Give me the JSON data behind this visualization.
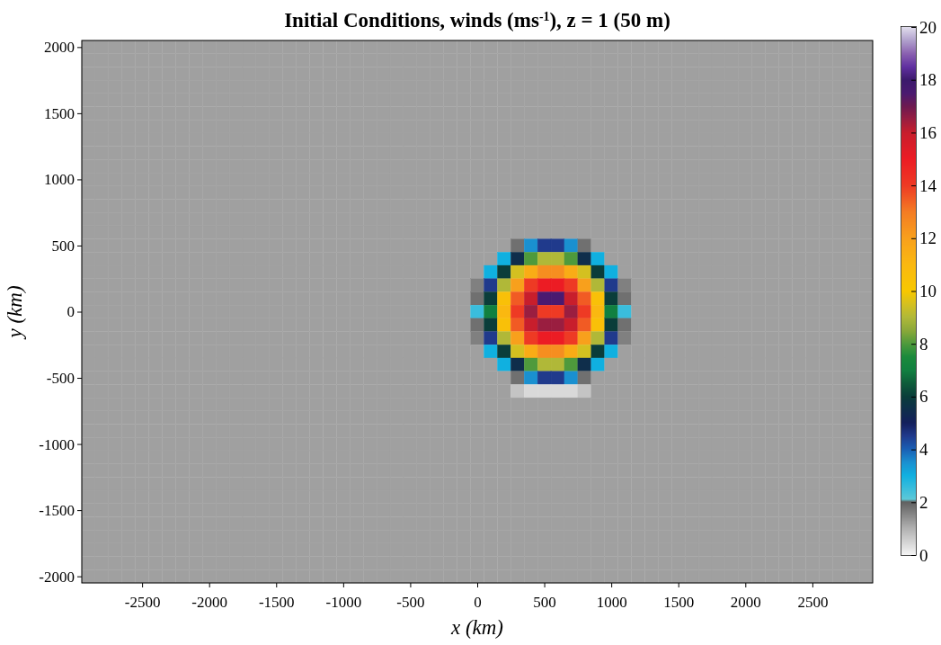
{
  "chart_data": {
    "type": "heatmap",
    "title": "Initial Conditions, winds (ms$^{-1}$), z = 1 (50 m)",
    "xlabel": "x (km)",
    "ylabel": "y (km)",
    "xlim": [
      -2950,
      2950
    ],
    "ylim": [
      -2050,
      2050
    ],
    "xticks": [
      -2500,
      -2000,
      -1500,
      -1000,
      -500,
      0,
      500,
      1000,
      1500,
      2000,
      2500
    ],
    "yticks": [
      -2000,
      -1500,
      -1000,
      -500,
      0,
      500,
      1000,
      1500,
      2000
    ],
    "clim": [
      0,
      20
    ],
    "cticks": [
      0,
      2,
      4,
      6,
      8,
      10,
      12,
      14,
      16,
      18,
      20
    ],
    "x": [
      -2900,
      -2800,
      -2700,
      -2600,
      -2500,
      -2400,
      -2300,
      -2200,
      -2100,
      -2000,
      -1900,
      -1800,
      -1700,
      -1600,
      -1500,
      -1400,
      -1300,
      -1200,
      -1100,
      -1000,
      -900,
      -800,
      -700,
      -600,
      -500,
      -400,
      -300,
      -200,
      -100,
      0,
      100,
      200,
      300,
      400,
      500,
      600,
      700,
      800,
      900,
      1000,
      1100,
      1200,
      1300,
      1400,
      1500,
      1600,
      1700,
      1800,
      1900,
      2000,
      2100,
      2200,
      2300,
      2400,
      2500,
      2600,
      2700,
      2800,
      2900
    ],
    "y": [
      2000,
      1900,
      1800,
      1700,
      1600,
      1500,
      1400,
      1300,
      1200,
      1100,
      1000,
      900,
      800,
      700,
      600,
      500,
      400,
      300,
      200,
      100,
      0,
      -100,
      -200,
      -300,
      -400,
      -500,
      -600,
      -700,
      -800,
      -900,
      -1000,
      -1100,
      -1200,
      -1300,
      -1400,
      -1500,
      -1600,
      -1700,
      -1800,
      -1900,
      -2000
    ],
    "cells": [
      [
        1.2,
        1.2,
        1.2,
        1.2,
        1.2,
        1.2,
        1.2,
        1.2,
        1.2,
        1.2,
        1.2,
        1.2,
        1.2,
        1.2,
        1.2,
        1.2,
        1.2,
        1.2,
        1.2,
        1.2,
        1.2,
        1.2,
        1.2,
        1.2,
        1.2,
        1.2,
        1.2,
        1.2,
        1.2,
        1.2,
        1.2,
        1.2,
        1.2,
        1.2,
        1.2,
        1.2,
        1.2,
        1.2,
        1.2,
        1.2,
        1.2,
        1.2,
        1.2,
        1.2,
        1.2,
        1.2,
        1.2,
        1.2,
        1.2,
        1.2,
        1.2,
        1.2,
        1.2,
        1.2,
        1.2,
        1.2,
        1.2,
        1.2,
        1.2
      ],
      [
        1.2,
        1.2,
        1.2,
        1.2,
        1.2,
        1.2,
        1.2,
        1.2,
        1.2,
        1.2,
        1.2,
        1.2,
        1.2,
        1.2,
        1.2,
        1.2,
        1.2,
        1.2,
        1.2,
        1.2,
        1.2,
        1.2,
        1.2,
        1.2,
        1.2,
        1.2,
        1.2,
        1.2,
        1.2,
        1.2,
        1.2,
        1.2,
        1.2,
        1.2,
        1.2,
        1.2,
        1.2,
        1.2,
        1.2,
        1.2,
        1.2,
        1.2,
        1.2,
        1.2,
        1.2,
        1.2,
        1.2,
        1.2,
        1.2,
        1.2,
        1.2,
        1.2,
        1.2,
        1.2,
        1.2,
        1.2,
        1.2,
        1.2,
        1.2
      ],
      [
        1.2,
        1.2,
        1.2,
        1.2,
        1.2,
        1.2,
        1.2,
        1.2,
        1.2,
        1.2,
        1.2,
        1.2,
        1.2,
        1.2,
        1.2,
        1.2,
        1.2,
        1.2,
        1.2,
        1.2,
        1.2,
        1.2,
        1.2,
        1.2,
        1.2,
        1.2,
        1.2,
        1.2,
        1.2,
        1.2,
        1.2,
        1.2,
        1.2,
        1.2,
        1.2,
        1.2,
        1.2,
        1.2,
        1.2,
        1.2,
        1.2,
        1.2,
        1.2,
        1.2,
        1.2,
        1.2,
        1.2,
        1.2,
        1.2,
        1.2,
        1.2,
        1.2,
        1.2,
        1.2,
        1.2,
        1.2,
        1.2,
        1.2,
        1.2
      ],
      [
        1.2,
        1.2,
        1.2,
        1.2,
        1.2,
        1.2,
        1.2,
        1.2,
        1.2,
        1.2,
        1.2,
        1.2,
        1.2,
        1.2,
        1.2,
        1.2,
        1.2,
        1.2,
        1.2,
        1.2,
        1.2,
        1.2,
        1.2,
        1.2,
        1.2,
        1.2,
        1.2,
        1.2,
        1.2,
        1.2,
        1.2,
        1.2,
        1.2,
        1.2,
        1.2,
        1.2,
        1.2,
        1.2,
        1.2,
        1.2,
        1.2,
        1.2,
        1.2,
        1.2,
        1.2,
        1.2,
        1.2,
        1.2,
        1.2,
        1.2,
        1.2,
        1.2,
        1.2,
        1.2,
        1.2,
        1.2,
        1.2,
        1.2,
        1.2
      ],
      [
        1.2,
        1.2,
        1.2,
        1.2,
        1.2,
        1.2,
        1.2,
        1.2,
        1.2,
        1.2,
        1.2,
        1.2,
        1.2,
        1.2,
        1.2,
        1.2,
        1.2,
        1.2,
        1.2,
        1.2,
        1.2,
        1.2,
        1.2,
        1.2,
        1.2,
        1.2,
        1.2,
        1.2,
        1.2,
        1.2,
        1.2,
        1.2,
        1.2,
        1.2,
        1.2,
        1.2,
        1.2,
        1.2,
        1.2,
        1.2,
        1.2,
        1.2,
        1.2,
        1.2,
        1.2,
        1.2,
        1.2,
        1.2,
        1.2,
        1.2,
        1.2,
        1.2,
        1.2,
        1.2,
        1.2,
        1.2,
        1.2,
        1.2,
        1.2
      ],
      [
        1.2,
        1.2,
        1.2,
        1.2,
        1.2,
        1.2,
        1.2,
        1.2,
        1.2,
        1.2,
        1.2,
        1.2,
        1.2,
        1.2,
        1.2,
        1.2,
        1.2,
        1.2,
        1.2,
        1.2,
        1.2,
        1.2,
        1.2,
        1.2,
        1.2,
        1.2,
        1.2,
        1.2,
        1.2,
        1.2,
        1.2,
        1.2,
        1.2,
        1.2,
        1.2,
        1.2,
        1.2,
        1.2,
        1.2,
        1.2,
        1.2,
        1.2,
        1.2,
        1.2,
        1.2,
        1.2,
        1.2,
        1.2,
        1.2,
        1.2,
        1.2,
        1.2,
        1.2,
        1.2,
        1.2,
        1.2,
        1.2,
        1.2,
        1.2
      ],
      [
        1.2,
        1.2,
        1.2,
        1.2,
        1.2,
        1.2,
        1.2,
        1.2,
        1.2,
        1.2,
        1.2,
        1.2,
        1.2,
        1.2,
        1.2,
        1.2,
        1.2,
        1.2,
        1.2,
        1.2,
        1.2,
        1.2,
        1.2,
        1.2,
        1.2,
        1.2,
        1.2,
        1.2,
        1.2,
        1.2,
        1.2,
        1.2,
        1.2,
        1.2,
        1.2,
        1.2,
        1.2,
        1.2,
        1.2,
        1.2,
        1.2,
        1.2,
        1.2,
        1.2,
        1.2,
        1.2,
        1.2,
        1.2,
        1.2,
        1.2,
        1.2,
        1.2,
        1.2,
        1.2,
        1.2,
        1.2,
        1.2,
        1.2,
        1.2
      ],
      [
        1.2,
        1.2,
        1.2,
        1.2,
        1.2,
        1.2,
        1.2,
        1.2,
        1.2,
        1.2,
        1.2,
        1.2,
        1.2,
        1.2,
        1.2,
        1.2,
        1.2,
        1.2,
        1.2,
        1.2,
        1.2,
        1.2,
        1.2,
        1.2,
        1.2,
        1.2,
        1.2,
        1.2,
        1.2,
        1.2,
        1.2,
        1.2,
        1.2,
        1.2,
        1.2,
        1.2,
        1.2,
        1.2,
        1.2,
        1.2,
        1.2,
        1.2,
        1.2,
        1.2,
        1.2,
        1.2,
        1.2,
        1.2,
        1.2,
        1.2,
        1.2,
        1.2,
        1.2,
        1.2,
        1.2,
        1.2,
        1.2,
        1.2,
        1.2
      ],
      [
        1.2,
        1.2,
        1.2,
        1.2,
        1.2,
        1.2,
        1.2,
        1.2,
        1.2,
        1.2,
        1.2,
        1.2,
        1.2,
        1.2,
        1.2,
        1.2,
        1.2,
        1.2,
        1.2,
        1.2,
        1.2,
        1.2,
        1.2,
        1.2,
        1.2,
        1.2,
        1.2,
        1.2,
        1.2,
        1.2,
        1.2,
        1.2,
        1.2,
        1.2,
        1.2,
        1.2,
        1.2,
        1.2,
        1.2,
        1.2,
        1.2,
        1.2,
        1.2,
        1.2,
        1.2,
        1.2,
        1.2,
        1.2,
        1.2,
        1.2,
        1.2,
        1.2,
        1.2,
        1.2,
        1.2,
        1.2,
        1.2,
        1.2,
        1.2
      ],
      [
        1.2,
        1.2,
        1.2,
        1.2,
        1.2,
        1.2,
        1.2,
        1.2,
        1.2,
        1.2,
        1.2,
        1.2,
        1.2,
        1.2,
        1.2,
        1.2,
        1.2,
        1.2,
        1.2,
        1.2,
        1.2,
        1.2,
        1.2,
        1.2,
        1.2,
        1.2,
        1.2,
        1.2,
        1.2,
        1.2,
        1.2,
        1.2,
        1.2,
        1.2,
        1.2,
        1.2,
        1.2,
        1.2,
        1.2,
        1.2,
        1.2,
        1.2,
        1.2,
        1.2,
        1.2,
        1.2,
        1.2,
        1.2,
        1.2,
        1.2,
        1.2,
        1.2,
        1.2,
        1.2,
        1.2,
        1.2,
        1.2,
        1.2,
        1.2
      ],
      [
        1.2,
        1.2,
        1.2,
        1.2,
        1.2,
        1.2,
        1.2,
        1.2,
        1.2,
        1.2,
        1.2,
        1.2,
        1.2,
        1.2,
        1.2,
        1.2,
        1.2,
        1.2,
        1.2,
        1.2,
        1.2,
        1.2,
        1.2,
        1.2,
        1.2,
        1.2,
        1.2,
        1.2,
        1.2,
        1.2,
        1.2,
        1.2,
        1.2,
        1.2,
        1.2,
        1.2,
        1.2,
        1.2,
        1.2,
        1.2,
        1.2,
        1.2,
        1.2,
        1.2,
        1.2,
        1.2,
        1.2,
        1.2,
        1.2,
        1.2,
        1.2,
        1.2,
        1.2,
        1.2,
        1.2,
        1.2,
        1.2,
        1.2,
        1.2
      ],
      [
        1.2,
        1.2,
        1.2,
        1.2,
        1.2,
        1.2,
        1.2,
        1.2,
        1.2,
        1.2,
        1.2,
        1.2,
        1.2,
        1.2,
        1.2,
        1.2,
        1.2,
        1.2,
        1.2,
        1.2,
        1.2,
        1.2,
        1.2,
        1.2,
        1.2,
        1.2,
        1.2,
        1.2,
        1.2,
        1.2,
        1.2,
        1.2,
        1.2,
        1.2,
        1.2,
        1.2,
        1.2,
        1.2,
        1.2,
        1.2,
        1.2,
        1.2,
        1.2,
        1.2,
        1.2,
        1.2,
        1.2,
        1.2,
        1.2,
        1.2,
        1.2,
        1.2,
        1.2,
        1.2,
        1.2,
        1.2,
        1.2,
        1.2,
        1.2
      ],
      [
        1.2,
        1.2,
        1.2,
        1.2,
        1.2,
        1.2,
        1.2,
        1.2,
        1.2,
        1.2,
        1.2,
        1.2,
        1.2,
        1.2,
        1.2,
        1.2,
        1.2,
        1.2,
        1.2,
        1.2,
        1.2,
        1.2,
        1.2,
        1.2,
        1.2,
        1.2,
        1.2,
        1.2,
        1.2,
        1.2,
        1.2,
        1.2,
        1.2,
        1.2,
        1.2,
        1.2,
        1.2,
        1.2,
        1.2,
        1.2,
        1.2,
        1.2,
        1.2,
        1.2,
        1.2,
        1.2,
        1.2,
        1.2,
        1.2,
        1.2,
        1.2,
        1.2,
        1.2,
        1.2,
        1.2,
        1.2,
        1.2,
        1.2,
        1.2
      ],
      [
        1.2,
        1.2,
        1.2,
        1.2,
        1.2,
        1.2,
        1.2,
        1.2,
        1.2,
        1.2,
        1.2,
        1.2,
        1.2,
        1.2,
        1.2,
        1.2,
        1.2,
        1.2,
        1.2,
        1.2,
        1.2,
        1.2,
        1.2,
        1.2,
        1.2,
        1.2,
        1.2,
        1.2,
        1.2,
        1.2,
        1.2,
        1.2,
        1.2,
        1.2,
        1.2,
        1.2,
        1.2,
        1.2,
        1.2,
        1.2,
        1.2,
        1.2,
        1.2,
        1.2,
        1.2,
        1.2,
        1.2,
        1.2,
        1.2,
        1.2,
        1.2,
        1.2,
        1.2,
        1.2,
        1.2,
        1.2,
        1.2,
        1.2,
        1.2
      ],
      [
        1.2,
        1.2,
        1.2,
        1.2,
        1.2,
        1.2,
        1.2,
        1.2,
        1.2,
        1.2,
        1.2,
        1.2,
        1.2,
        1.2,
        1.2,
        1.2,
        1.2,
        1.2,
        1.2,
        1.2,
        1.2,
        1.2,
        1.2,
        1.2,
        1.2,
        1.2,
        1.2,
        1.2,
        1.2,
        1.2,
        1.2,
        1.2,
        1.2,
        1.2,
        1.2,
        1.2,
        1.2,
        1.2,
        1.2,
        1.2,
        1.2,
        1.2,
        1.2,
        1.2,
        1.2,
        1.2,
        1.2,
        1.2,
        1.2,
        1.2,
        1.2,
        1.2,
        1.2,
        1.2,
        1.2,
        1.2,
        1.2,
        1.2,
        1.2
      ],
      [
        1.2,
        1.2,
        1.2,
        1.2,
        1.2,
        1.2,
        1.2,
        1.2,
        1.2,
        1.2,
        1.2,
        1.2,
        1.2,
        1.2,
        1.2,
        1.2,
        1.2,
        1.2,
        1.2,
        1.2,
        1.2,
        1.2,
        1.2,
        1.2,
        1.2,
        1.2,
        1.2,
        1.2,
        1.2,
        1.2,
        1.2,
        1.2,
        1.8,
        3.5,
        4.5,
        4.5,
        3.5,
        1.8,
        1.2,
        1.2,
        1.2,
        1.2,
        1.2,
        1.2,
        1.2,
        1.2,
        1.2,
        1.2,
        1.2,
        1.2,
        1.2,
        1.2,
        1.2,
        1.2,
        1.2,
        1.2,
        1.2,
        1.2,
        1.2
      ],
      [
        1.2,
        1.2,
        1.2,
        1.2,
        1.2,
        1.2,
        1.2,
        1.2,
        1.2,
        1.2,
        1.2,
        1.2,
        1.2,
        1.2,
        1.2,
        1.2,
        1.2,
        1.2,
        1.2,
        1.2,
        1.2,
        1.2,
        1.2,
        1.2,
        1.2,
        1.2,
        1.2,
        1.2,
        1.2,
        1.2,
        1.2,
        3,
        5.5,
        8,
        9,
        9,
        8,
        5.5,
        3,
        1.2,
        1.2,
        1.2,
        1.2,
        1.2,
        1.2,
        1.2,
        1.2,
        1.2,
        1.2,
        1.2,
        1.2,
        1.2,
        1.2,
        1.2,
        1.2,
        1.2,
        1.2,
        1.2,
        1.2
      ],
      [
        1.2,
        1.2,
        1.2,
        1.2,
        1.2,
        1.2,
        1.2,
        1.2,
        1.2,
        1.2,
        1.2,
        1.2,
        1.2,
        1.2,
        1.2,
        1.2,
        1.2,
        1.2,
        1.2,
        1.2,
        1.2,
        1.2,
        1.2,
        1.2,
        1.2,
        1.2,
        1.2,
        1.2,
        1.2,
        1.2,
        3,
        6,
        9.5,
        11.5,
        12.5,
        12.5,
        11.5,
        9.5,
        6,
        3,
        1.2,
        1.2,
        1.2,
        1.2,
        1.2,
        1.2,
        1.2,
        1.2,
        1.2,
        1.2,
        1.2,
        1.2,
        1.2,
        1.2,
        1.2,
        1.2,
        1.2,
        1.2,
        1.2
      ],
      [
        1.2,
        1.2,
        1.2,
        1.2,
        1.2,
        1.2,
        1.2,
        1.2,
        1.2,
        1.2,
        1.2,
        1.2,
        1.2,
        1.2,
        1.2,
        1.2,
        1.2,
        1.2,
        1.2,
        1.2,
        1.2,
        1.2,
        1.2,
        1.2,
        1.2,
        1.2,
        1.2,
        1.2,
        1.2,
        1.6,
        4.5,
        9,
        12,
        14,
        15,
        15,
        14,
        12,
        9,
        4.5,
        1.6,
        1.2,
        1.2,
        1.2,
        1.2,
        1.2,
        1.2,
        1.2,
        1.2,
        1.2,
        1.2,
        1.2,
        1.2,
        1.2,
        1.2,
        1.2,
        1.2,
        1.2,
        1.2
      ],
      [
        1.2,
        1.2,
        1.2,
        1.2,
        1.2,
        1.2,
        1.2,
        1.2,
        1.2,
        1.2,
        1.2,
        1.2,
        1.2,
        1.2,
        1.2,
        1.2,
        1.2,
        1.2,
        1.2,
        1.2,
        1.2,
        1.2,
        1.2,
        1.2,
        1.2,
        1.2,
        1.2,
        1.2,
        1.2,
        1.8,
        6,
        10.5,
        13.5,
        16,
        17.5,
        17.5,
        16,
        13.5,
        10.5,
        6,
        1.8,
        1.2,
        1.2,
        1.2,
        1.2,
        1.2,
        1.2,
        1.2,
        1.2,
        1.2,
        1.2,
        1.2,
        1.2,
        1.2,
        1.2,
        1.2,
        1.2,
        1.2,
        1.2
      ],
      [
        1.2,
        1.2,
        1.2,
        1.2,
        1.2,
        1.2,
        1.2,
        1.2,
        1.2,
        1.2,
        1.2,
        1.2,
        1.2,
        1.2,
        1.2,
        1.2,
        1.2,
        1.2,
        1.2,
        1.2,
        1.2,
        1.2,
        1.2,
        1.2,
        1.2,
        1.2,
        1.2,
        1.2,
        1.2,
        2.5,
        7,
        11,
        14,
        16.5,
        14,
        14,
        16.5,
        14,
        11,
        7,
        2.5,
        1.2,
        1.2,
        1.2,
        1.2,
        1.2,
        1.2,
        1.2,
        1.2,
        1.2,
        1.2,
        1.2,
        1.2,
        1.2,
        1.2,
        1.2,
        1.2,
        1.2,
        1.2
      ],
      [
        1.2,
        1.2,
        1.2,
        1.2,
        1.2,
        1.2,
        1.2,
        1.2,
        1.2,
        1.2,
        1.2,
        1.2,
        1.2,
        1.2,
        1.2,
        1.2,
        1.2,
        1.2,
        1.2,
        1.2,
        1.2,
        1.2,
        1.2,
        1.2,
        1.2,
        1.2,
        1.2,
        1.2,
        1.2,
        1.8,
        6,
        10.5,
        13.5,
        16,
        16.5,
        16.5,
        16,
        13.5,
        10.5,
        6,
        1.8,
        1.2,
        1.2,
        1.2,
        1.2,
        1.2,
        1.2,
        1.2,
        1.2,
        1.2,
        1.2,
        1.2,
        1.2,
        1.2,
        1.2,
        1.2,
        1.2,
        1.2,
        1.2
      ],
      [
        1.2,
        1.2,
        1.2,
        1.2,
        1.2,
        1.2,
        1.2,
        1.2,
        1.2,
        1.2,
        1.2,
        1.2,
        1.2,
        1.2,
        1.2,
        1.2,
        1.2,
        1.2,
        1.2,
        1.2,
        1.2,
        1.2,
        1.2,
        1.2,
        1.2,
        1.2,
        1.2,
        1.2,
        1.2,
        1.6,
        4.5,
        9,
        12,
        14,
        15,
        15,
        14,
        12,
        9,
        4.5,
        1.6,
        1.2,
        1.2,
        1.2,
        1.2,
        1.2,
        1.2,
        1.2,
        1.2,
        1.2,
        1.2,
        1.2,
        1.2,
        1.2,
        1.2,
        1.2,
        1.2,
        1.2,
        1.2
      ],
      [
        1.2,
        1.2,
        1.2,
        1.2,
        1.2,
        1.2,
        1.2,
        1.2,
        1.2,
        1.2,
        1.2,
        1.2,
        1.2,
        1.2,
        1.2,
        1.2,
        1.2,
        1.2,
        1.2,
        1.2,
        1.2,
        1.2,
        1.2,
        1.2,
        1.2,
        1.2,
        1.2,
        1.2,
        1.2,
        1.2,
        3,
        6,
        9.5,
        11.5,
        12.5,
        12.5,
        11.5,
        9.5,
        6,
        3,
        1.2,
        1.2,
        1.2,
        1.2,
        1.2,
        1.2,
        1.2,
        1.2,
        1.2,
        1.2,
        1.2,
        1.2,
        1.2,
        1.2,
        1.2,
        1.2,
        1.2,
        1.2,
        1.2
      ],
      [
        1.2,
        1.2,
        1.2,
        1.2,
        1.2,
        1.2,
        1.2,
        1.2,
        1.2,
        1.2,
        1.2,
        1.2,
        1.2,
        1.2,
        1.2,
        1.2,
        1.2,
        1.2,
        1.2,
        1.2,
        1.2,
        1.2,
        1.2,
        1.2,
        1.2,
        1.2,
        1.2,
        1.2,
        1.2,
        1.2,
        1.2,
        3,
        5.5,
        8,
        9,
        9,
        8,
        5.5,
        3,
        1.2,
        1.2,
        1.2,
        1.2,
        1.2,
        1.2,
        1.2,
        1.2,
        1.2,
        1.2,
        1.2,
        1.2,
        1.2,
        1.2,
        1.2,
        1.2,
        1.2,
        1.2,
        1.2,
        1.2
      ],
      [
        1.2,
        1.2,
        1.2,
        1.2,
        1.2,
        1.2,
        1.2,
        1.2,
        1.2,
        1.2,
        1.2,
        1.2,
        1.2,
        1.2,
        1.2,
        1.2,
        1.2,
        1.2,
        1.2,
        1.2,
        1.2,
        1.2,
        1.2,
        1.2,
        1.2,
        1.2,
        1.2,
        1.2,
        1.2,
        1.2,
        1.2,
        1.2,
        1.8,
        3.5,
        4.5,
        4.5,
        3.5,
        1.8,
        1.2,
        1.2,
        1.2,
        1.2,
        1.2,
        1.2,
        1.2,
        1.2,
        1.2,
        1.2,
        1.2,
        1.2,
        1.2,
        1.2,
        1.2,
        1.2,
        1.2,
        1.2,
        1.2,
        1.2,
        1.2
      ],
      [
        1.2,
        1.2,
        1.2,
        1.2,
        1.2,
        1.2,
        1.2,
        1.2,
        1.2,
        1.2,
        1.2,
        1.2,
        1.2,
        1.2,
        1.2,
        1.2,
        1.2,
        1.2,
        1.2,
        1.2,
        1.2,
        1.2,
        1.2,
        1.2,
        1.2,
        1.2,
        1.2,
        1.2,
        1.2,
        1.2,
        1.2,
        1.2,
        0.7,
        0.4,
        0.4,
        0.4,
        0.4,
        0.7,
        1.2,
        1.2,
        1.2,
        1.2,
        1.2,
        1.2,
        1.2,
        1.2,
        1.2,
        1.2,
        1.2,
        1.2,
        1.2,
        1.2,
        1.2,
        1.2,
        1.2,
        1.2,
        1.2,
        1.2,
        1.2
      ],
      [
        1.2,
        1.2,
        1.2,
        1.2,
        1.2,
        1.2,
        1.2,
        1.2,
        1.2,
        1.2,
        1.2,
        1.2,
        1.2,
        1.2,
        1.2,
        1.2,
        1.2,
        1.2,
        1.2,
        1.2,
        1.2,
        1.2,
        1.2,
        1.2,
        1.2,
        1.2,
        1.2,
        1.2,
        1.2,
        1.2,
        1.2,
        1.2,
        1.2,
        1.2,
        1.2,
        1.2,
        1.2,
        1.2,
        1.2,
        1.2,
        1.2,
        1.2,
        1.2,
        1.2,
        1.2,
        1.2,
        1.2,
        1.2,
        1.2,
        1.2,
        1.2,
        1.2,
        1.2,
        1.2,
        1.2,
        1.2,
        1.2,
        1.2,
        1.2
      ],
      [
        1.2,
        1.2,
        1.2,
        1.2,
        1.2,
        1.2,
        1.2,
        1.2,
        1.2,
        1.2,
        1.2,
        1.2,
        1.2,
        1.2,
        1.2,
        1.2,
        1.2,
        1.2,
        1.2,
        1.2,
        1.2,
        1.2,
        1.2,
        1.2,
        1.2,
        1.2,
        1.2,
        1.2,
        1.2,
        1.2,
        1.2,
        1.2,
        1.2,
        1.2,
        1.2,
        1.2,
        1.2,
        1.2,
        1.2,
        1.2,
        1.2,
        1.2,
        1.2,
        1.2,
        1.2,
        1.2,
        1.2,
        1.2,
        1.2,
        1.2,
        1.2,
        1.2,
        1.2,
        1.2,
        1.2,
        1.2,
        1.2,
        1.2,
        1.2
      ],
      [
        1.2,
        1.2,
        1.2,
        1.2,
        1.2,
        1.2,
        1.2,
        1.2,
        1.2,
        1.2,
        1.2,
        1.2,
        1.2,
        1.2,
        1.2,
        1.2,
        1.2,
        1.2,
        1.2,
        1.2,
        1.2,
        1.2,
        1.2,
        1.2,
        1.2,
        1.2,
        1.2,
        1.2,
        1.2,
        1.2,
        1.2,
        1.2,
        1.2,
        1.2,
        1.2,
        1.2,
        1.2,
        1.2,
        1.2,
        1.2,
        1.2,
        1.2,
        1.2,
        1.2,
        1.2,
        1.2,
        1.2,
        1.2,
        1.2,
        1.2,
        1.2,
        1.2,
        1.2,
        1.2,
        1.2,
        1.2,
        1.2,
        1.2,
        1.2
      ],
      [
        1.2,
        1.2,
        1.2,
        1.2,
        1.2,
        1.2,
        1.2,
        1.2,
        1.2,
        1.2,
        1.2,
        1.2,
        1.2,
        1.2,
        1.2,
        1.2,
        1.2,
        1.2,
        1.2,
        1.2,
        1.2,
        1.2,
        1.2,
        1.2,
        1.2,
        1.2,
        1.2,
        1.2,
        1.2,
        1.2,
        1.2,
        1.2,
        1.2,
        1.2,
        1.2,
        1.2,
        1.2,
        1.2,
        1.2,
        1.2,
        1.2,
        1.2,
        1.2,
        1.2,
        1.2,
        1.2,
        1.2,
        1.2,
        1.2,
        1.2,
        1.2,
        1.2,
        1.2,
        1.2,
        1.2,
        1.2,
        1.2,
        1.2,
        1.2
      ],
      [
        1.2,
        1.2,
        1.2,
        1.2,
        1.2,
        1.2,
        1.2,
        1.2,
        1.2,
        1.2,
        1.2,
        1.2,
        1.2,
        1.2,
        1.2,
        1.2,
        1.2,
        1.2,
        1.2,
        1.2,
        1.2,
        1.2,
        1.2,
        1.2,
        1.2,
        1.2,
        1.2,
        1.2,
        1.2,
        1.2,
        1.2,
        1.2,
        1.2,
        1.2,
        1.2,
        1.2,
        1.2,
        1.2,
        1.2,
        1.2,
        1.2,
        1.2,
        1.2,
        1.2,
        1.2,
        1.2,
        1.2,
        1.2,
        1.2,
        1.2,
        1.2,
        1.2,
        1.2,
        1.2,
        1.2,
        1.2,
        1.2,
        1.2,
        1.2
      ],
      [
        1.2,
        1.2,
        1.2,
        1.2,
        1.2,
        1.2,
        1.2,
        1.2,
        1.2,
        1.2,
        1.2,
        1.2,
        1.2,
        1.2,
        1.2,
        1.2,
        1.2,
        1.2,
        1.2,
        1.2,
        1.2,
        1.2,
        1.2,
        1.2,
        1.2,
        1.2,
        1.2,
        1.2,
        1.2,
        1.2,
        1.2,
        1.2,
        1.2,
        1.2,
        1.2,
        1.2,
        1.2,
        1.2,
        1.2,
        1.2,
        1.2,
        1.2,
        1.2,
        1.2,
        1.2,
        1.2,
        1.2,
        1.2,
        1.2,
        1.2,
        1.2,
        1.2,
        1.2,
        1.2,
        1.2,
        1.2,
        1.2,
        1.2,
        1.2
      ],
      [
        1.2,
        1.2,
        1.2,
        1.2,
        1.2,
        1.2,
        1.2,
        1.2,
        1.2,
        1.2,
        1.2,
        1.2,
        1.2,
        1.2,
        1.2,
        1.2,
        1.2,
        1.2,
        1.2,
        1.2,
        1.2,
        1.2,
        1.2,
        1.2,
        1.2,
        1.2,
        1.2,
        1.2,
        1.2,
        1.2,
        1.2,
        1.2,
        1.2,
        1.2,
        1.2,
        1.2,
        1.2,
        1.2,
        1.2,
        1.2,
        1.2,
        1.2,
        1.2,
        1.2,
        1.2,
        1.2,
        1.2,
        1.2,
        1.2,
        1.2,
        1.2,
        1.2,
        1.2,
        1.2,
        1.2,
        1.2,
        1.2,
        1.2,
        1.2
      ],
      [
        1.2,
        1.2,
        1.2,
        1.2,
        1.2,
        1.2,
        1.2,
        1.2,
        1.2,
        1.2,
        1.2,
        1.2,
        1.2,
        1.2,
        1.2,
        1.2,
        1.2,
        1.2,
        1.2,
        1.2,
        1.2,
        1.2,
        1.2,
        1.2,
        1.2,
        1.2,
        1.2,
        1.2,
        1.2,
        1.2,
        1.2,
        1.2,
        1.2,
        1.2,
        1.2,
        1.2,
        1.2,
        1.2,
        1.2,
        1.2,
        1.2,
        1.2,
        1.2,
        1.2,
        1.2,
        1.2,
        1.2,
        1.2,
        1.2,
        1.2,
        1.2,
        1.2,
        1.2,
        1.2,
        1.2,
        1.2,
        1.2,
        1.2,
        1.2
      ],
      [
        1.2,
        1.2,
        1.2,
        1.2,
        1.2,
        1.2,
        1.2,
        1.2,
        1.2,
        1.2,
        1.2,
        1.2,
        1.2,
        1.2,
        1.2,
        1.2,
        1.2,
        1.2,
        1.2,
        1.2,
        1.2,
        1.2,
        1.2,
        1.2,
        1.2,
        1.2,
        1.2,
        1.2,
        1.2,
        1.2,
        1.2,
        1.2,
        1.2,
        1.2,
        1.2,
        1.2,
        1.2,
        1.2,
        1.2,
        1.2,
        1.2,
        1.2,
        1.2,
        1.2,
        1.2,
        1.2,
        1.2,
        1.2,
        1.2,
        1.2,
        1.2,
        1.2,
        1.2,
        1.2,
        1.2,
        1.2,
        1.2,
        1.2,
        1.2
      ],
      [
        1.2,
        1.2,
        1.2,
        1.2,
        1.2,
        1.2,
        1.2,
        1.2,
        1.2,
        1.2,
        1.2,
        1.2,
        1.2,
        1.2,
        1.2,
        1.2,
        1.2,
        1.2,
        1.2,
        1.2,
        1.2,
        1.2,
        1.2,
        1.2,
        1.2,
        1.2,
        1.2,
        1.2,
        1.2,
        1.2,
        1.2,
        1.2,
        1.2,
        1.2,
        1.2,
        1.2,
        1.2,
        1.2,
        1.2,
        1.2,
        1.2,
        1.2,
        1.2,
        1.2,
        1.2,
        1.2,
        1.2,
        1.2,
        1.2,
        1.2,
        1.2,
        1.2,
        1.2,
        1.2,
        1.2,
        1.2,
        1.2,
        1.2,
        1.2
      ],
      [
        1.2,
        1.2,
        1.2,
        1.2,
        1.2,
        1.2,
        1.2,
        1.2,
        1.2,
        1.2,
        1.2,
        1.2,
        1.2,
        1.2,
        1.2,
        1.2,
        1.2,
        1.2,
        1.2,
        1.2,
        1.2,
        1.2,
        1.2,
        1.2,
        1.2,
        1.2,
        1.2,
        1.2,
        1.2,
        1.2,
        1.2,
        1.2,
        1.2,
        1.2,
        1.2,
        1.2,
        1.2,
        1.2,
        1.2,
        1.2,
        1.2,
        1.2,
        1.2,
        1.2,
        1.2,
        1.2,
        1.2,
        1.2,
        1.2,
        1.2,
        1.2,
        1.2,
        1.2,
        1.2,
        1.2,
        1.2,
        1.2,
        1.2,
        1.2
      ],
      [
        1.2,
        1.2,
        1.2,
        1.2,
        1.2,
        1.2,
        1.2,
        1.2,
        1.2,
        1.2,
        1.2,
        1.2,
        1.2,
        1.2,
        1.2,
        1.2,
        1.2,
        1.2,
        1.2,
        1.2,
        1.2,
        1.2,
        1.2,
        1.2,
        1.2,
        1.2,
        1.2,
        1.2,
        1.2,
        1.2,
        1.2,
        1.2,
        1.2,
        1.2,
        1.2,
        1.2,
        1.2,
        1.2,
        1.2,
        1.2,
        1.2,
        1.2,
        1.2,
        1.2,
        1.2,
        1.2,
        1.2,
        1.2,
        1.2,
        1.2,
        1.2,
        1.2,
        1.2,
        1.2,
        1.2,
        1.2,
        1.2,
        1.2,
        1.2
      ],
      [
        1.2,
        1.2,
        1.2,
        1.2,
        1.2,
        1.2,
        1.2,
        1.2,
        1.2,
        1.2,
        1.2,
        1.2,
        1.2,
        1.2,
        1.2,
        1.2,
        1.2,
        1.2,
        1.2,
        1.2,
        1.2,
        1.2,
        1.2,
        1.2,
        1.2,
        1.2,
        1.2,
        1.2,
        1.2,
        1.2,
        1.2,
        1.2,
        1.2,
        1.2,
        1.2,
        1.2,
        1.2,
        1.2,
        1.2,
        1.2,
        1.2,
        1.2,
        1.2,
        1.2,
        1.2,
        1.2,
        1.2,
        1.2,
        1.2,
        1.2,
        1.2,
        1.2,
        1.2,
        1.2,
        1.2,
        1.2,
        1.2,
        1.2,
        1.2
      ],
      [
        1.2,
        1.2,
        1.2,
        1.2,
        1.2,
        1.2,
        1.2,
        1.2,
        1.2,
        1.2,
        1.2,
        1.2,
        1.2,
        1.2,
        1.2,
        1.2,
        1.2,
        1.2,
        1.2,
        1.2,
        1.2,
        1.2,
        1.2,
        1.2,
        1.2,
        1.2,
        1.2,
        1.2,
        1.2,
        1.2,
        1.2,
        1.2,
        1.2,
        1.2,
        1.2,
        1.2,
        1.2,
        1.2,
        1.2,
        1.2,
        1.2,
        1.2,
        1.2,
        1.2,
        1.2,
        1.2,
        1.2,
        1.2,
        1.2,
        1.2,
        1.2,
        1.2,
        1.2,
        1.2,
        1.2,
        1.2,
        1.2,
        1.2,
        1.2
      ]
    ]
  }
}
